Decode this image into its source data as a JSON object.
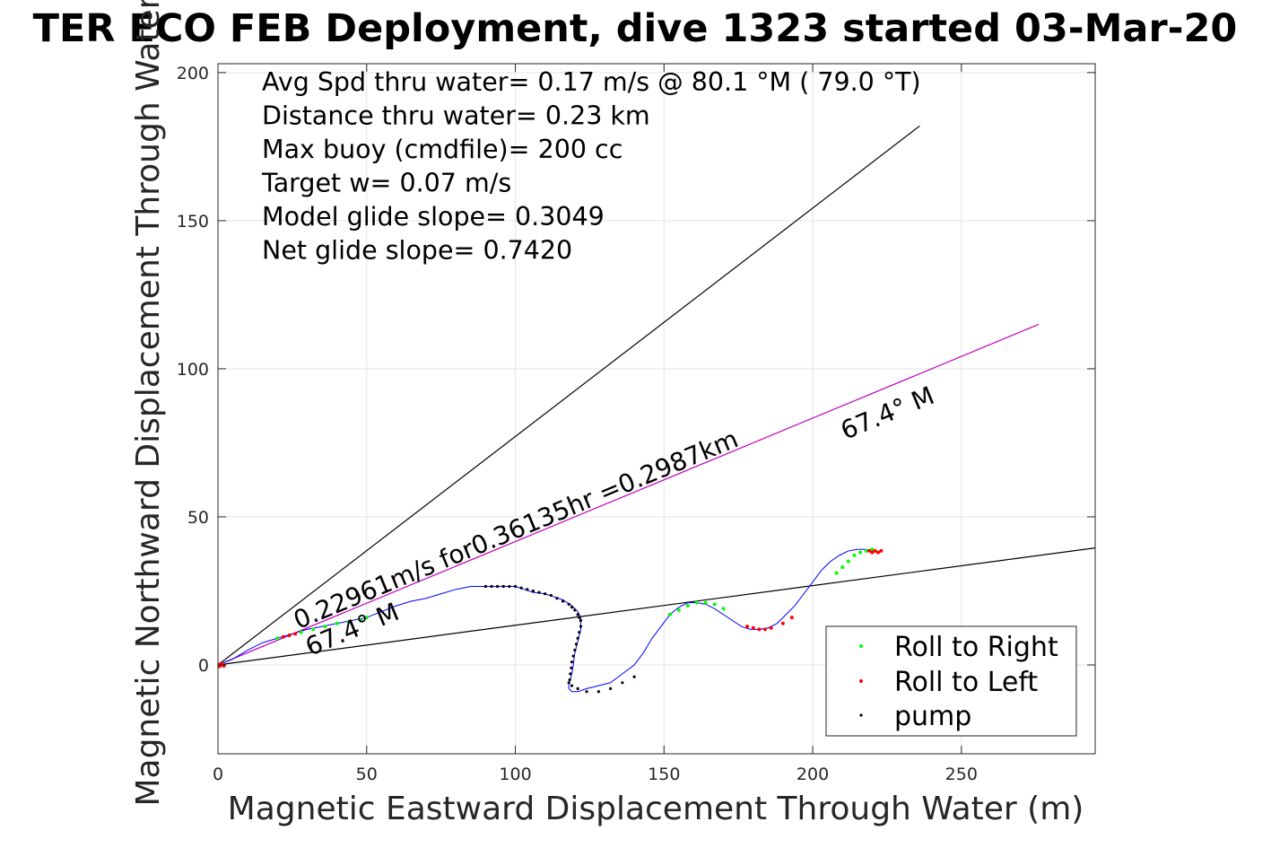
{
  "chart_data": {
    "type": "line",
    "title": "TER ECO FEB Deployment, dive 1323 started 03-Mar-20",
    "xlabel": "Magnetic Eastward Displacement Through Water (m)",
    "ylabel": "Magnetic Northward Displacement Through Water(",
    "xlim": [
      0,
      295
    ],
    "ylim": [
      -30,
      203
    ],
    "xticks": [
      0,
      50,
      100,
      150,
      200,
      250
    ],
    "yticks": [
      0,
      50,
      100,
      150,
      200
    ],
    "grid": true,
    "info_lines": [
      "Avg Spd thru water=  0.17 m/s @  80.1 °M ( 79.0 °T)",
      "Distance thru water=  0.23 km",
      "Max buoy (cmdfile)= 200 cc",
      "Target w= 0.07 m/s",
      "Model glide slope= 0.3049",
      "Net glide slope= 0.7420"
    ],
    "reference_lines": [
      {
        "x": [
          0,
          236
        ],
        "y": [
          0,
          182
        ],
        "color": "#000000"
      },
      {
        "x": [
          0,
          295
        ],
        "y": [
          0,
          39.5
        ],
        "color": "#000000"
      },
      {
        "x": [
          0,
          276
        ],
        "y": [
          0,
          115
        ],
        "color": "#bf00bf"
      }
    ],
    "annotations": [
      {
        "text": "0.22961m/s for0.36135hr =0.2987km",
        "x": 27,
        "y": 12,
        "angle": -22.6
      },
      {
        "text": "67.4° M",
        "x": 31,
        "y": 3,
        "angle": -22.6
      },
      {
        "text": "67.4° M",
        "x": 211,
        "y": 76,
        "angle": -22.6
      }
    ],
    "series": [
      {
        "name": "track",
        "color": "#0000ff",
        "x": [
          0,
          5,
          10,
          15,
          20,
          25,
          30,
          35,
          40,
          45,
          50,
          55,
          60,
          65,
          70,
          75,
          80,
          85,
          90,
          95,
          100,
          103,
          106,
          110,
          113,
          116,
          119,
          121,
          122,
          122,
          121,
          120,
          119.5,
          119,
          118.5,
          118,
          118,
          118,
          119,
          121,
          124,
          128,
          132,
          136,
          140,
          143,
          146,
          149,
          152,
          155,
          158,
          161,
          164,
          167,
          170,
          173,
          176,
          179,
          182,
          185,
          188,
          191,
          194,
          197,
          200,
          203,
          206,
          209,
          212,
          215,
          218,
          220,
          222,
          223
        ],
        "y": [
          0,
          2,
          5,
          7.5,
          9,
          10.5,
          12,
          13,
          14,
          15,
          16,
          18,
          20,
          21.5,
          22.5,
          24,
          25.5,
          26.5,
          26.5,
          26.5,
          26.5,
          25.5,
          24.5,
          24,
          23,
          22,
          20,
          18,
          16,
          12,
          8,
          4,
          0,
          -3,
          -5,
          -6,
          -7,
          -8,
          -9,
          -9,
          -8,
          -7,
          -6,
          -3,
          0,
          4,
          9,
          13,
          17,
          19.5,
          21,
          21,
          20.5,
          19,
          17,
          15,
          13,
          12,
          12,
          12.5,
          14,
          17,
          20,
          24,
          28,
          32,
          35,
          37,
          38.5,
          39,
          39,
          38.5,
          38,
          38.5
        ]
      },
      {
        "name": "Roll to Right",
        "color": "#00ff00",
        "x": [
          20,
          24,
          28,
          32,
          36,
          40,
          44,
          48,
          50,
          152,
          155,
          158,
          161,
          164,
          167,
          170,
          208,
          210,
          212,
          214,
          216,
          218,
          220
        ],
        "y": [
          9,
          10,
          11,
          12,
          13,
          14,
          14.5,
          15,
          16,
          17,
          18.5,
          20,
          21,
          21,
          20.5,
          19,
          31,
          33,
          35,
          37,
          38,
          38.5,
          39
        ]
      },
      {
        "name": "Roll to Left",
        "color": "#ff0000",
        "x": [
          0,
          0.5,
          1,
          1.5,
          2,
          22,
          24,
          26,
          178,
          180,
          182,
          184,
          186,
          190,
          193,
          219,
          220,
          221,
          222,
          223
        ],
        "y": [
          0,
          -0.5,
          0.5,
          0,
          -0.3,
          9.5,
          10,
          10.5,
          13,
          12.5,
          12,
          12,
          12.5,
          14,
          16,
          38.5,
          38,
          38.5,
          38,
          38.5
        ]
      },
      {
        "name": "pump",
        "color": "#000000",
        "x": [
          90,
          92,
          94,
          96,
          98,
          100,
          102,
          104,
          106,
          108,
          110,
          112,
          114,
          116,
          118,
          119,
          120,
          121,
          121.5,
          122,
          122,
          121.5,
          121,
          120.5,
          120,
          119.5,
          119,
          118.8,
          118.5,
          118.3,
          118,
          119,
          121,
          124,
          128,
          132,
          136,
          140
        ],
        "y": [
          26.5,
          26.5,
          26.5,
          26.5,
          26.5,
          26.5,
          26,
          25.5,
          25,
          24.5,
          24,
          23.5,
          22.5,
          21.5,
          20.5,
          19.5,
          18.5,
          17,
          16,
          15,
          13,
          11,
          9,
          7,
          5,
          3,
          1,
          -1,
          -3,
          -5,
          -6,
          -7,
          -8,
          -9,
          -9,
          -8,
          -6,
          -4
        ]
      }
    ],
    "legend": {
      "position": "bottom-right",
      "items": [
        "Roll to Right",
        "Roll to Left",
        "pump"
      ]
    }
  }
}
